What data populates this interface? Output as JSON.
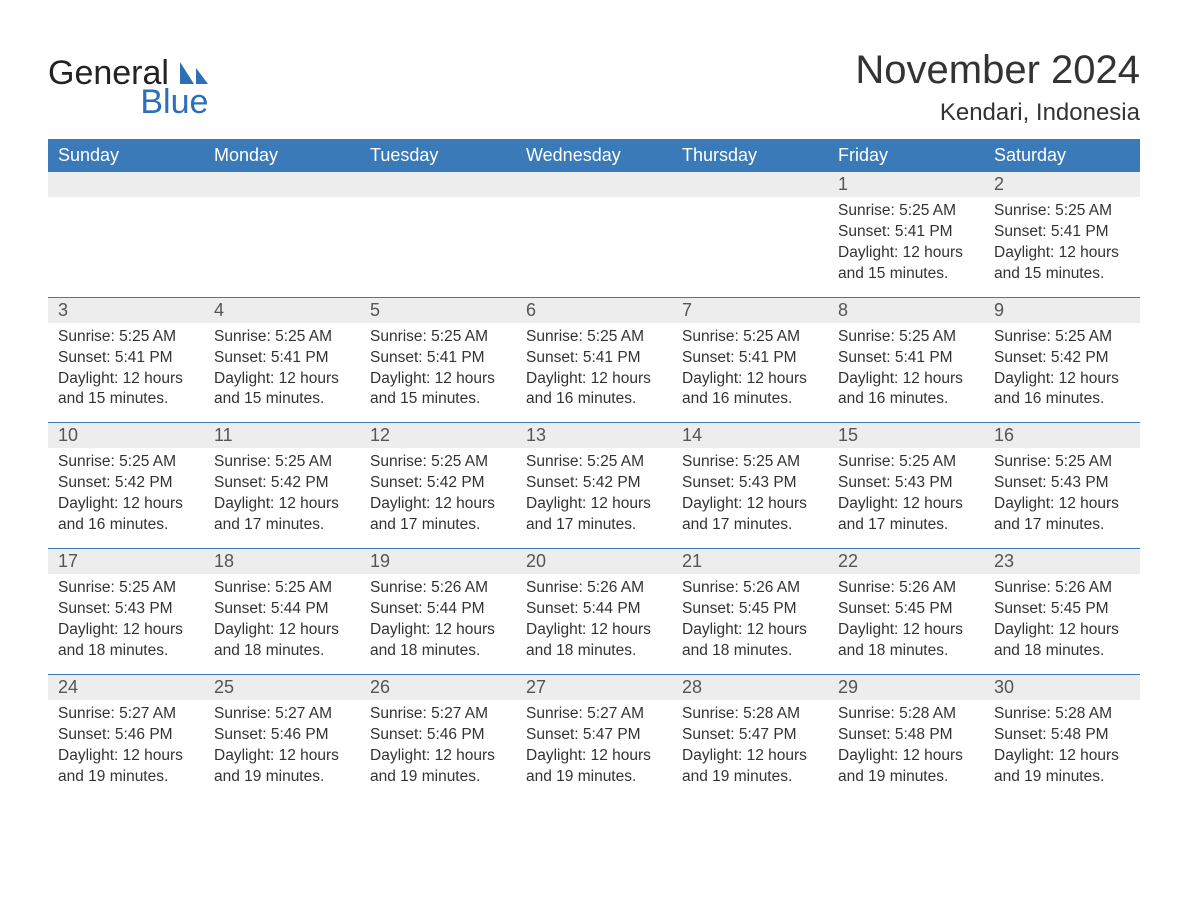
{
  "brand": {
    "name1": "General",
    "name2": "Blue"
  },
  "title": "November 2024",
  "location": "Kendari, Indonesia",
  "colors": {
    "header_bg": "#3a7ab8",
    "header_text": "#ffffff",
    "daynum_bg": "#ededed",
    "daynum_text": "#555555",
    "body_text": "#333333",
    "rule": "#3a7ab8",
    "brand_blue": "#2d6fb7"
  },
  "day_headers": [
    "Sunday",
    "Monday",
    "Tuesday",
    "Wednesday",
    "Thursday",
    "Friday",
    "Saturday"
  ],
  "weeks": [
    [
      null,
      null,
      null,
      null,
      null,
      {
        "n": "1",
        "sunrise": "5:25 AM",
        "sunset": "5:41 PM",
        "daylight": "12 hours and 15 minutes."
      },
      {
        "n": "2",
        "sunrise": "5:25 AM",
        "sunset": "5:41 PM",
        "daylight": "12 hours and 15 minutes."
      }
    ],
    [
      {
        "n": "3",
        "sunrise": "5:25 AM",
        "sunset": "5:41 PM",
        "daylight": "12 hours and 15 minutes."
      },
      {
        "n": "4",
        "sunrise": "5:25 AM",
        "sunset": "5:41 PM",
        "daylight": "12 hours and 15 minutes."
      },
      {
        "n": "5",
        "sunrise": "5:25 AM",
        "sunset": "5:41 PM",
        "daylight": "12 hours and 15 minutes."
      },
      {
        "n": "6",
        "sunrise": "5:25 AM",
        "sunset": "5:41 PM",
        "daylight": "12 hours and 16 minutes."
      },
      {
        "n": "7",
        "sunrise": "5:25 AM",
        "sunset": "5:41 PM",
        "daylight": "12 hours and 16 minutes."
      },
      {
        "n": "8",
        "sunrise": "5:25 AM",
        "sunset": "5:41 PM",
        "daylight": "12 hours and 16 minutes."
      },
      {
        "n": "9",
        "sunrise": "5:25 AM",
        "sunset": "5:42 PM",
        "daylight": "12 hours and 16 minutes."
      }
    ],
    [
      {
        "n": "10",
        "sunrise": "5:25 AM",
        "sunset": "5:42 PM",
        "daylight": "12 hours and 16 minutes."
      },
      {
        "n": "11",
        "sunrise": "5:25 AM",
        "sunset": "5:42 PM",
        "daylight": "12 hours and 17 minutes."
      },
      {
        "n": "12",
        "sunrise": "5:25 AM",
        "sunset": "5:42 PM",
        "daylight": "12 hours and 17 minutes."
      },
      {
        "n": "13",
        "sunrise": "5:25 AM",
        "sunset": "5:42 PM",
        "daylight": "12 hours and 17 minutes."
      },
      {
        "n": "14",
        "sunrise": "5:25 AM",
        "sunset": "5:43 PM",
        "daylight": "12 hours and 17 minutes."
      },
      {
        "n": "15",
        "sunrise": "5:25 AM",
        "sunset": "5:43 PM",
        "daylight": "12 hours and 17 minutes."
      },
      {
        "n": "16",
        "sunrise": "5:25 AM",
        "sunset": "5:43 PM",
        "daylight": "12 hours and 17 minutes."
      }
    ],
    [
      {
        "n": "17",
        "sunrise": "5:25 AM",
        "sunset": "5:43 PM",
        "daylight": "12 hours and 18 minutes."
      },
      {
        "n": "18",
        "sunrise": "5:25 AM",
        "sunset": "5:44 PM",
        "daylight": "12 hours and 18 minutes."
      },
      {
        "n": "19",
        "sunrise": "5:26 AM",
        "sunset": "5:44 PM",
        "daylight": "12 hours and 18 minutes."
      },
      {
        "n": "20",
        "sunrise": "5:26 AM",
        "sunset": "5:44 PM",
        "daylight": "12 hours and 18 minutes."
      },
      {
        "n": "21",
        "sunrise": "5:26 AM",
        "sunset": "5:45 PM",
        "daylight": "12 hours and 18 minutes."
      },
      {
        "n": "22",
        "sunrise": "5:26 AM",
        "sunset": "5:45 PM",
        "daylight": "12 hours and 18 minutes."
      },
      {
        "n": "23",
        "sunrise": "5:26 AM",
        "sunset": "5:45 PM",
        "daylight": "12 hours and 18 minutes."
      }
    ],
    [
      {
        "n": "24",
        "sunrise": "5:27 AM",
        "sunset": "5:46 PM",
        "daylight": "12 hours and 19 minutes."
      },
      {
        "n": "25",
        "sunrise": "5:27 AM",
        "sunset": "5:46 PM",
        "daylight": "12 hours and 19 minutes."
      },
      {
        "n": "26",
        "sunrise": "5:27 AM",
        "sunset": "5:46 PM",
        "daylight": "12 hours and 19 minutes."
      },
      {
        "n": "27",
        "sunrise": "5:27 AM",
        "sunset": "5:47 PM",
        "daylight": "12 hours and 19 minutes."
      },
      {
        "n": "28",
        "sunrise": "5:28 AM",
        "sunset": "5:47 PM",
        "daylight": "12 hours and 19 minutes."
      },
      {
        "n": "29",
        "sunrise": "5:28 AM",
        "sunset": "5:48 PM",
        "daylight": "12 hours and 19 minutes."
      },
      {
        "n": "30",
        "sunrise": "5:28 AM",
        "sunset": "5:48 PM",
        "daylight": "12 hours and 19 minutes."
      }
    ]
  ],
  "labels": {
    "sunrise": "Sunrise:",
    "sunset": "Sunset:",
    "daylight": "Daylight:"
  }
}
